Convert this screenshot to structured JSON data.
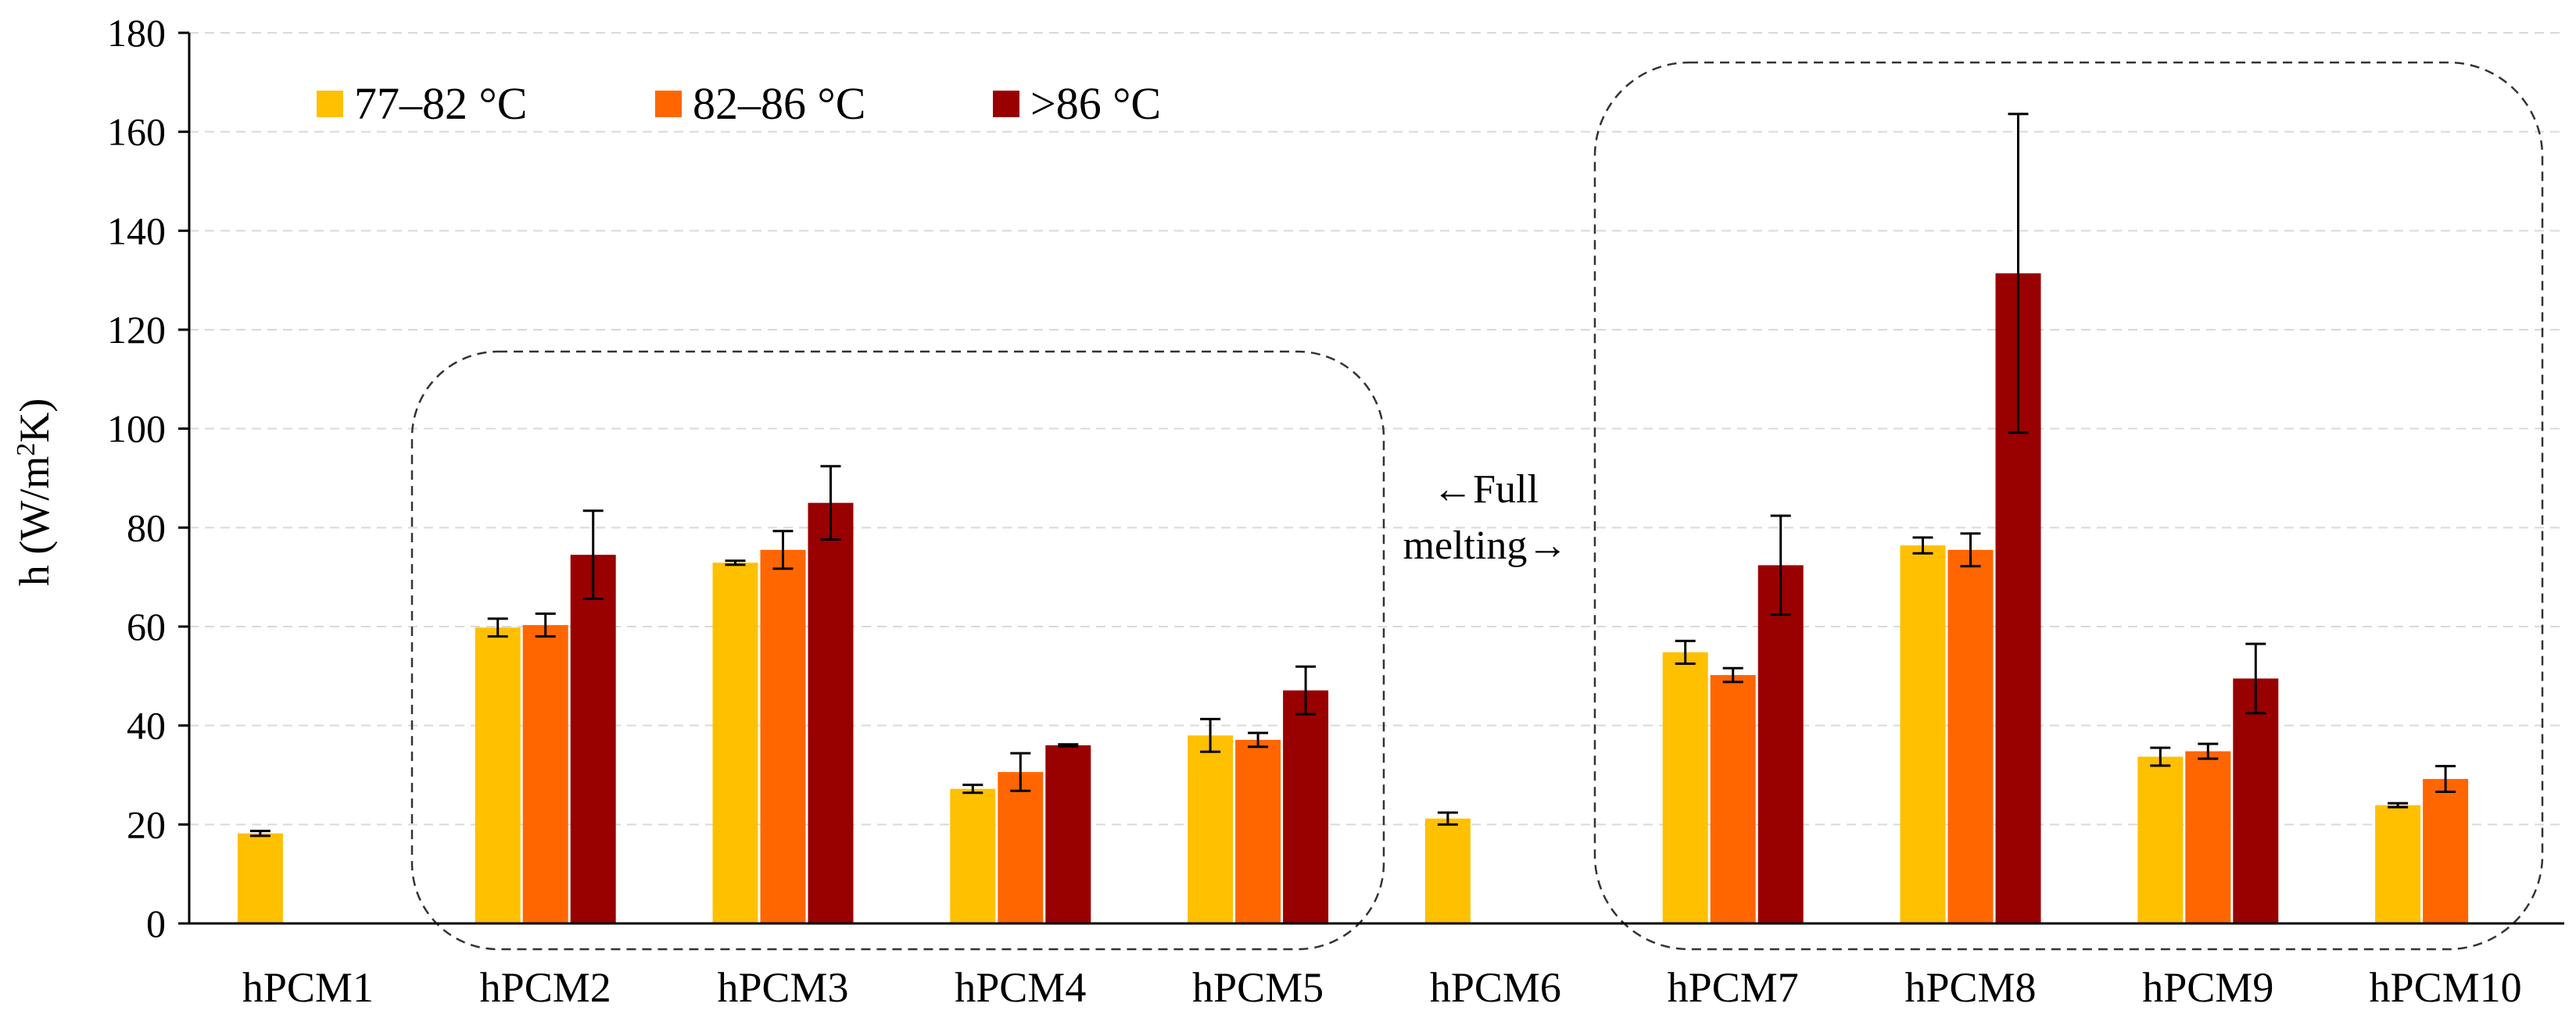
{
  "chart_data": {
    "type": "bar",
    "title": "",
    "xlabel": "",
    "ylabel": "h (W/m²K)",
    "ylim": [
      0,
      180
    ],
    "yticks": [
      0,
      20,
      40,
      60,
      80,
      100,
      120,
      140,
      160,
      180
    ],
    "grid": true,
    "legend_position": "top-left",
    "categories": [
      "hPCM1",
      "hPCM2",
      "hPCM3",
      "hPCM4",
      "hPCM5",
      "hPCM6",
      "hPCM7",
      "hPCM8",
      "hPCM9",
      "hPCM10"
    ],
    "series": [
      {
        "name": "77–82 °C",
        "color": "#FFC000",
        "values": [
          18.2,
          59.8,
          72.9,
          27.2,
          38.0,
          21.2,
          54.8,
          76.4,
          33.7,
          23.9
        ],
        "errors": [
          0.5,
          1.8,
          0.4,
          0.8,
          3.3,
          1.2,
          2.3,
          1.6,
          1.8,
          0.4
        ]
      },
      {
        "name": "82–86 °C",
        "color": "#FF6600",
        "values": [
          null,
          60.3,
          75.5,
          30.6,
          37.1,
          null,
          50.2,
          75.5,
          34.8,
          29.2
        ],
        "errors": [
          null,
          2.3,
          3.8,
          3.8,
          1.4,
          null,
          1.4,
          3.3,
          1.5,
          2.6
        ]
      },
      {
        "name": ">86 °C",
        "color": "#990000",
        "values": [
          null,
          74.5,
          85.0,
          36.0,
          47.1,
          null,
          72.4,
          131.4,
          49.5,
          null
        ],
        "errors": [
          null,
          8.9,
          7.4,
          0.2,
          4.8,
          null,
          10.0,
          32.2,
          7.0,
          null
        ]
      }
    ],
    "annotations": [
      {
        "text_line1": "←Full",
        "text_line2": "melting→",
        "near": "between hPCM5 and hPCM6"
      },
      {
        "type": "dashed-rounded-box",
        "encloses": [
          "hPCM2",
          "hPCM3",
          "hPCM4",
          "hPCM5"
        ]
      },
      {
        "type": "dashed-rounded-box",
        "encloses": [
          "hPCM7",
          "hPCM8",
          "hPCM9",
          "hPCM10"
        ]
      }
    ]
  }
}
